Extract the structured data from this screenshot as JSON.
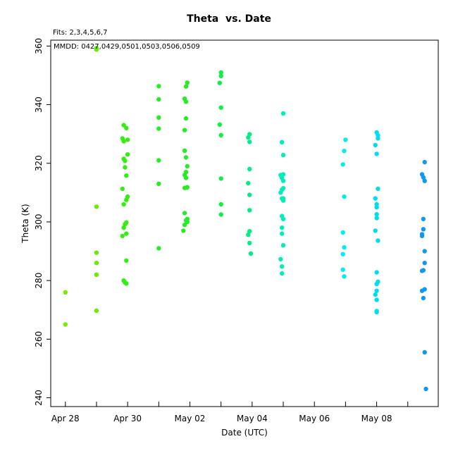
{
  "chart_data": {
    "type": "scatter",
    "title": "Theta  vs. Date",
    "subtitle": "Fits: 2,3,4,5,6,7",
    "annotation": "MMDD: 0427,0429,0501,0503,0506,0509",
    "xlabel": "Date (UTC)",
    "ylabel": "Theta (K)",
    "xlim": [
      "2024-04-27T12:43",
      "2024-05-09T23:30"
    ],
    "ylim": [
      237,
      362
    ],
    "x_tick_labels": [
      "Apr 28",
      "Apr 30",
      "May 02",
      "May 04",
      "May 06",
      "May 08"
    ],
    "x_tick_values": [
      "2024-04-28",
      "2024-04-30",
      "2024-05-02",
      "2024-05-04",
      "2024-05-06",
      "2024-05-08"
    ],
    "x_minor_tick_values": [
      "2024-04-29",
      "2024-05-01",
      "2024-05-03",
      "2024-05-05",
      "2024-05-07",
      "2024-05-09"
    ],
    "y_ticks": [
      240,
      260,
      280,
      300,
      320,
      340,
      360
    ],
    "grid": false,
    "legend": "none",
    "series": [
      {
        "color": "#76ee00",
        "points": [
          [
            "2024-04-28T00:00",
            276.0
          ],
          [
            "2024-04-28T00:00",
            265.0
          ]
        ]
      },
      {
        "color": "#66ee00",
        "points": [
          [
            "2024-04-29T00:00",
            359.3
          ],
          [
            "2024-04-29T00:00",
            358.8
          ],
          [
            "2024-04-29T00:00",
            305.2
          ],
          [
            "2024-04-29T00:00",
            289.5
          ],
          [
            "2024-04-29T00:00",
            286.0
          ],
          [
            "2024-04-29T00:00",
            282.0
          ],
          [
            "2024-04-29T00:00",
            269.7
          ]
        ]
      },
      {
        "color": "#33ee11",
        "points": [
          [
            "2024-04-29T21:00",
            333.0
          ],
          [
            "2024-04-29T23:00",
            332.0
          ],
          [
            "2024-04-29T20:00",
            328.5
          ],
          [
            "2024-04-29T21:00",
            327.5
          ],
          [
            "2024-04-30T00:00",
            328.0
          ],
          [
            "2024-04-30T00:00",
            323.0
          ],
          [
            "2024-04-29T21:00",
            321.5
          ],
          [
            "2024-04-29T22:00",
            320.8
          ],
          [
            "2024-04-29T22:00",
            318.6
          ],
          [
            "2024-04-29T23:00",
            315.8
          ],
          [
            "2024-04-29T20:00",
            311.3
          ],
          [
            "2024-04-30T00:00",
            308.6
          ],
          [
            "2024-04-29T23:00",
            307.5
          ],
          [
            "2024-04-29T21:00",
            306.0
          ],
          [
            "2024-04-29T23:00",
            299.8
          ],
          [
            "2024-04-29T22:00",
            299.2
          ],
          [
            "2024-04-29T21:00",
            298.0
          ],
          [
            "2024-04-29T23:00",
            296.0
          ],
          [
            "2024-04-29T20:00",
            295.2
          ],
          [
            "2024-04-29T23:00",
            286.8
          ],
          [
            "2024-04-29T21:00",
            280.0
          ],
          [
            "2024-04-29T22:00",
            279.3
          ],
          [
            "2024-04-29T23:00",
            279.0
          ]
        ]
      },
      {
        "color": "#22ee22",
        "points": [
          [
            "2024-05-01T00:00",
            346.3
          ],
          [
            "2024-05-01T00:00",
            341.8
          ],
          [
            "2024-05-01T00:00",
            335.6
          ],
          [
            "2024-05-01T00:00",
            331.8
          ],
          [
            "2024-05-01T00:00",
            321.0
          ],
          [
            "2024-05-01T00:00",
            313.0
          ],
          [
            "2024-05-01T00:00",
            291.0
          ]
        ]
      },
      {
        "color": "#22ee22",
        "points": [
          [
            "2024-05-01T22:00",
            347.5
          ],
          [
            "2024-05-01T21:00",
            346.2
          ],
          [
            "2024-05-01T20:00",
            342.0
          ],
          [
            "2024-05-01T21:00",
            341.0
          ],
          [
            "2024-05-01T21:00",
            335.3
          ],
          [
            "2024-05-01T20:00",
            331.3
          ],
          [
            "2024-05-01T20:00",
            324.3
          ],
          [
            "2024-05-01T21:00",
            322.0
          ],
          [
            "2024-05-01T22:00",
            319.0
          ],
          [
            "2024-05-01T21:00",
            317.0
          ],
          [
            "2024-05-01T20:00",
            316.0
          ],
          [
            "2024-05-01T21:00",
            315.0
          ],
          [
            "2024-05-01T22:00",
            311.8
          ],
          [
            "2024-05-01T20:00",
            311.6
          ],
          [
            "2024-05-01T20:00",
            303.0
          ],
          [
            "2024-05-01T22:00",
            301.0
          ],
          [
            "2024-05-01T21:00",
            300.5
          ],
          [
            "2024-05-01T22:00",
            300.0
          ],
          [
            "2024-05-01T20:00",
            299.0
          ],
          [
            "2024-05-01T19:00",
            297.0
          ]
        ]
      },
      {
        "color": "#11ee44",
        "points": [
          [
            "2024-05-03T00:00",
            351.0
          ],
          [
            "2024-05-03T00:00",
            349.8
          ],
          [
            "2024-05-02T23:00",
            347.4
          ],
          [
            "2024-05-03T00:00",
            339.0
          ],
          [
            "2024-05-02T23:00",
            333.2
          ],
          [
            "2024-05-03T00:00",
            329.6
          ],
          [
            "2024-05-03T00:00",
            314.8
          ],
          [
            "2024-05-03T00:00",
            306.0
          ],
          [
            "2024-05-03T00:00",
            302.5
          ]
        ]
      },
      {
        "color": "#00ee88",
        "points": [
          [
            "2024-05-03T22:00",
            329.9
          ],
          [
            "2024-05-03T21:00",
            328.8
          ],
          [
            "2024-05-03T22:00",
            327.3
          ],
          [
            "2024-05-03T22:00",
            318.0
          ],
          [
            "2024-05-03T21:00",
            313.2
          ],
          [
            "2024-05-03T22:00",
            309.2
          ],
          [
            "2024-05-03T22:00",
            304.0
          ],
          [
            "2024-05-03T22:00",
            296.8
          ],
          [
            "2024-05-03T21:00",
            295.6
          ],
          [
            "2024-05-03T22:00",
            292.8
          ],
          [
            "2024-05-03T23:00",
            289.2
          ]
        ]
      },
      {
        "color": "#00eebb",
        "points": [
          [
            "2024-05-05T00:00",
            337.0
          ],
          [
            "2024-05-04T23:00",
            327.2
          ],
          [
            "2024-05-05T00:00",
            322.8
          ],
          [
            "2024-05-04T22:00",
            316.0
          ],
          [
            "2024-05-05T00:00",
            316.2
          ],
          [
            "2024-05-04T23:00",
            315.0
          ],
          [
            "2024-05-05T00:00",
            314.0
          ],
          [
            "2024-05-04T23:00",
            311.0
          ],
          [
            "2024-05-05T00:00",
            311.5
          ],
          [
            "2024-05-04T22:00",
            310.0
          ],
          [
            "2024-05-04T23:00",
            308.0
          ],
          [
            "2024-05-05T00:00",
            308.0
          ],
          [
            "2024-05-05T00:00",
            307.3
          ],
          [
            "2024-05-04T23:00",
            302.0
          ],
          [
            "2024-05-05T00:00",
            301.0
          ],
          [
            "2024-05-04T23:00",
            298.0
          ],
          [
            "2024-05-04T23:00",
            296.0
          ],
          [
            "2024-05-05T00:00",
            292.0
          ],
          [
            "2024-05-04T22:00",
            287.3
          ],
          [
            "2024-05-04T23:00",
            284.8
          ],
          [
            "2024-05-04T23:00",
            282.4
          ]
        ]
      },
      {
        "color": "#00eeee",
        "points": [
          [
            "2024-05-07T00:00",
            328.0
          ],
          [
            "2024-05-06T23:00",
            324.2
          ],
          [
            "2024-05-06T22:00",
            319.6
          ],
          [
            "2024-05-06T23:00",
            308.6
          ],
          [
            "2024-05-06T22:00",
            296.4
          ],
          [
            "2024-05-06T23:00",
            291.3
          ],
          [
            "2024-05-06T22:00",
            289.0
          ],
          [
            "2024-05-06T22:00",
            283.7
          ],
          [
            "2024-05-06T23:00",
            281.4
          ]
        ]
      },
      {
        "color": "#00ddee",
        "points": [
          [
            "2024-05-08T00:00",
            330.5
          ],
          [
            "2024-05-08T01:00",
            329.5
          ],
          [
            "2024-05-08T01:00",
            328.5
          ],
          [
            "2024-05-07T23:00",
            326.2
          ],
          [
            "2024-05-08T00:00",
            323.2
          ],
          [
            "2024-05-08T01:00",
            311.3
          ],
          [
            "2024-05-07T23:00",
            308.0
          ],
          [
            "2024-05-08T00:00",
            306.0
          ],
          [
            "2024-05-08T00:00",
            305.0
          ],
          [
            "2024-05-08T00:00",
            302.6
          ],
          [
            "2024-05-08T00:00",
            301.3
          ],
          [
            "2024-05-07T23:00",
            297.0
          ],
          [
            "2024-05-08T01:00",
            293.6
          ],
          [
            "2024-05-08T00:00",
            282.8
          ],
          [
            "2024-05-08T01:00",
            279.6
          ],
          [
            "2024-05-08T00:00",
            278.8
          ],
          [
            "2024-05-08T00:00",
            276.5
          ],
          [
            "2024-05-07T23:00",
            275.2
          ],
          [
            "2024-05-08T00:00",
            273.4
          ],
          [
            "2024-05-08T00:00",
            269.6
          ],
          [
            "2024-05-08T00:00",
            269.2
          ]
        ]
      },
      {
        "color": "#1199ee",
        "points": [
          [
            "2024-05-09T13:00",
            320.4
          ],
          [
            "2024-05-09T11:00",
            316.2
          ],
          [
            "2024-05-09T12:00",
            315.2
          ],
          [
            "2024-05-09T13:00",
            314.0
          ],
          [
            "2024-05-09T12:00",
            301.0
          ],
          [
            "2024-05-09T12:00",
            297.5
          ],
          [
            "2024-05-09T11:00",
            295.8
          ],
          [
            "2024-05-09T11:00",
            295.2
          ],
          [
            "2024-05-09T13:00",
            290.0
          ],
          [
            "2024-05-09T13:00",
            286.0
          ],
          [
            "2024-05-09T12:00",
            283.5
          ],
          [
            "2024-05-09T11:00",
            283.3
          ],
          [
            "2024-05-09T13:00",
            277.0
          ],
          [
            "2024-05-09T11:00",
            276.5
          ],
          [
            "2024-05-09T12:00",
            274.0
          ],
          [
            "2024-05-09T13:00",
            255.5
          ],
          [
            "2024-05-09T14:00",
            243.0
          ]
        ]
      }
    ]
  }
}
